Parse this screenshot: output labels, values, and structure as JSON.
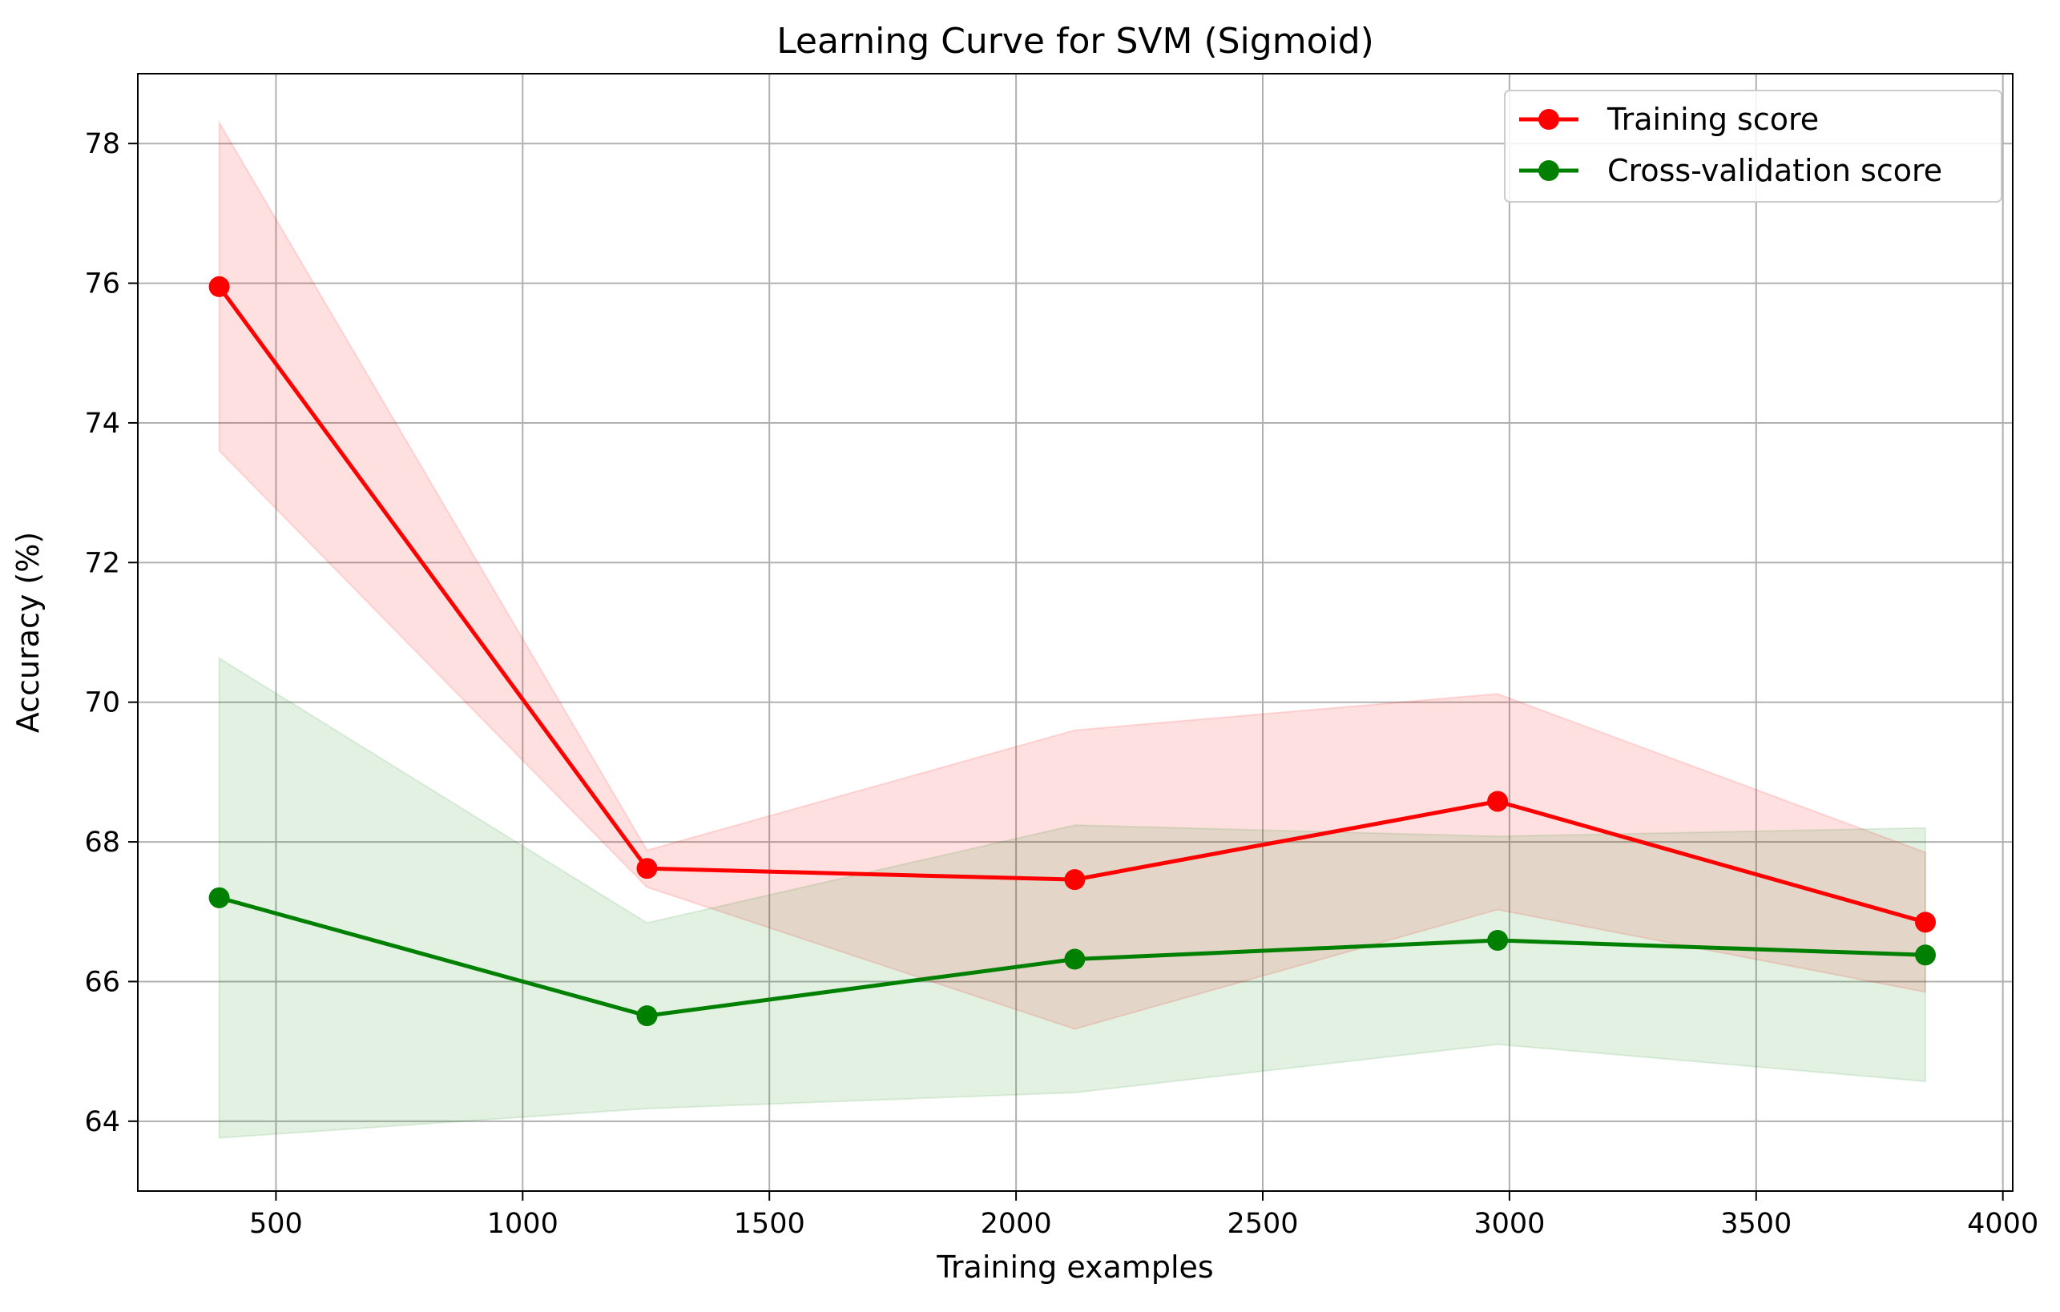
{
  "chart_data": {
    "type": "line",
    "title": "Learning Curve for SVM (Sigmoid)",
    "xlabel": "Training examples",
    "ylabel": "Accuracy (%)",
    "x": [
      385,
      1252,
      2119,
      2976,
      3843
    ],
    "xlim": [
      220,
      4020
    ],
    "ylim": [
      63.0,
      79.0
    ],
    "x_ticks": [
      500,
      1000,
      1500,
      2000,
      2500,
      3000,
      3500,
      4000
    ],
    "y_ticks": [
      64,
      66,
      68,
      70,
      72,
      74,
      76,
      78
    ],
    "grid": true,
    "legend_position": "upper right",
    "series": [
      {
        "name": "Training score",
        "color": "#ff0000",
        "values": [
          75.95,
          67.62,
          67.46,
          68.58,
          66.85
        ],
        "band_upper": [
          78.3,
          67.88,
          69.6,
          70.12,
          67.85
        ],
        "band_lower": [
          73.6,
          67.35,
          65.32,
          67.03,
          65.85
        ],
        "band_color": "#ff0000",
        "band_opacity": 0.12
      },
      {
        "name": "Cross-validation score",
        "color": "#008000",
        "values": [
          67.2,
          65.51,
          66.32,
          66.59,
          66.38
        ],
        "band_upper": [
          70.63,
          66.84,
          68.24,
          68.08,
          68.2
        ],
        "band_lower": [
          63.76,
          64.18,
          64.41,
          65.1,
          64.57
        ],
        "band_color": "#008000",
        "band_opacity": 0.11
      }
    ]
  }
}
